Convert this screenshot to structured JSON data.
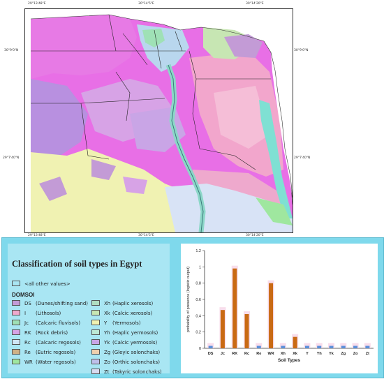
{
  "coords": {
    "top": [
      "29°13'48\"E",
      "30°14'5\"E",
      "30°14'20\"E"
    ],
    "bottom": [
      "29°13'48\"E",
      "30°14'5\"E",
      "30°14'20\"E"
    ],
    "left": [
      "30°9'0\"N",
      "29°7'40\"N"
    ],
    "right": [
      "30°9'0\"N",
      "29°7'40\"N"
    ]
  },
  "legend": {
    "title": "Classification of soil types in Egypt",
    "other_values": "<all other values>",
    "field_name": "DOMSOI",
    "items_left": [
      {
        "code": "DS",
        "name": "(Dunes/shifting sand)",
        "color": "#c39bd6"
      },
      {
        "code": "I",
        "name": "(Lithosols)",
        "color": "#eea9cd"
      },
      {
        "code": "Jc",
        "name": "(Calcaric fluvisols)",
        "color": "#9fe1b6"
      },
      {
        "code": "RK",
        "name": "(Rock debris)",
        "color": "#d7a3e6"
      },
      {
        "code": "Rc",
        "name": "(Calcaric regosols)",
        "color": "#cfe6f7"
      },
      {
        "code": "Re",
        "name": "(Eutric regosols)",
        "color": "#cfb287"
      },
      {
        "code": "WR",
        "name": "(Water regosols)",
        "color": "#9fe79f"
      }
    ],
    "items_right": [
      {
        "code": "Xh",
        "name": "(Haplic xerosols)",
        "color": "#b0ddc1"
      },
      {
        "code": "Xk",
        "name": "(Calcic xerosols)",
        "color": "#c7e6b3"
      },
      {
        "code": "Y",
        "name": "(Yermosols)",
        "color": "#f0f2b2"
      },
      {
        "code": "Yh",
        "name": "(Haplic yermosols)",
        "color": "#bde9d6"
      },
      {
        "code": "Yk",
        "name": "(Calcic yermosols)",
        "color": "#c9a5e6"
      },
      {
        "code": "Zg",
        "name": "(Gleyic solonchaks)",
        "color": "#f0d0ae"
      },
      {
        "code": "Zo",
        "name": "(Orthic solonchaks)",
        "color": "#bfc0ea"
      },
      {
        "code": "Zt",
        "name": "(Takyric solonchaks)",
        "color": "#d9dbf0"
      }
    ]
  },
  "chart_data": {
    "type": "bar",
    "categories": [
      "DS",
      "Jc",
      "RK",
      "Rc",
      "Re",
      "WR",
      "Xh",
      "Xk",
      "Y",
      "Yh",
      "Yk",
      "Zg",
      "Zo",
      "Zt"
    ],
    "values": [
      0.03,
      0.47,
      0.98,
      0.42,
      0.03,
      0.8,
      0.03,
      0.14,
      0.03,
      0.03,
      0.03,
      0.03,
      0.03,
      0.03
    ],
    "colors": [
      "#5b8fd9",
      "#c96a14",
      "#c96a14",
      "#c96a14",
      "#5b8fd9",
      "#c96a14",
      "#5b8fd9",
      "#c96a14",
      "#5b8fd9",
      "#5b8fd9",
      "#5b8fd9",
      "#5b8fd9",
      "#5b8fd9",
      "#5b8fd9"
    ],
    "ylabel": "probability of presence (logistic output)",
    "xlabel": "Soil Types",
    "ylim": [
      0,
      1.2
    ],
    "yticks": [
      "0",
      "0.2",
      "0.4",
      "0.6",
      "0.8",
      "1",
      "1.2"
    ]
  }
}
